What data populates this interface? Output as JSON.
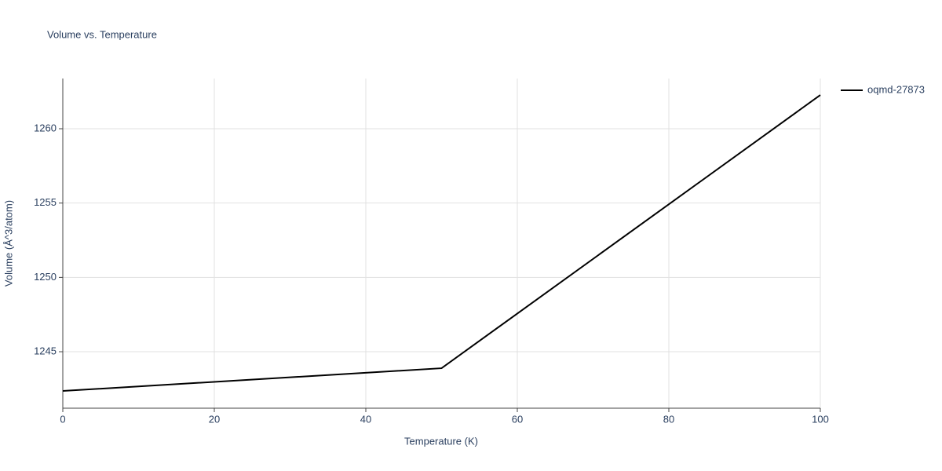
{
  "chart_data": {
    "type": "line",
    "title": "Volume vs. Temperature",
    "x_label": "Temperature (K)",
    "y_label": "Volume (Å^3/atom)",
    "x": [
      0,
      50,
      100
    ],
    "series": [
      {
        "name": "oqmd-27873",
        "color": "#000000",
        "values": [
          1242.36,
          1243.89,
          1262.27
        ]
      }
    ],
    "xlim": [
      0,
      100
    ],
    "xticks": [
      0,
      20,
      40,
      60,
      80,
      100
    ],
    "ylim": [
      1241.2,
      1263.38
    ],
    "yticks": [
      1245,
      1250,
      1255,
      1260
    ],
    "grid": true,
    "legend": "top-right"
  }
}
